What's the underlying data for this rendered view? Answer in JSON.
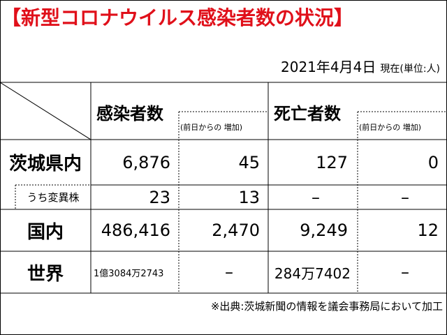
{
  "title": "【新型コロナウイルス感染者数の状況】",
  "date": "2021年4月4日",
  "date_note": "現在(単位:人)",
  "columns": {
    "infected": "感染者数",
    "infected_delta": "(前日からの 増加)",
    "deaths": "死亡者数",
    "deaths_delta": "(前日からの 増加)"
  },
  "rows": [
    {
      "label": "茨城県内",
      "infected": "6,876",
      "infected_delta": "45",
      "deaths": "127",
      "deaths_delta": "0"
    },
    {
      "label": "うち変異株",
      "infected": "23",
      "infected_delta": "13",
      "deaths": "–",
      "deaths_delta": "–"
    },
    {
      "label": "国内",
      "infected": "486,416",
      "infected_delta": "2,470",
      "deaths": "9,249",
      "deaths_delta": "12"
    },
    {
      "label": "世界",
      "infected": "1億3084万2743",
      "infected_delta": "–",
      "deaths": "284万7402",
      "deaths_delta": "–"
    }
  ],
  "source": "※出典:茨城新聞の情報を議会事務局において加工"
}
